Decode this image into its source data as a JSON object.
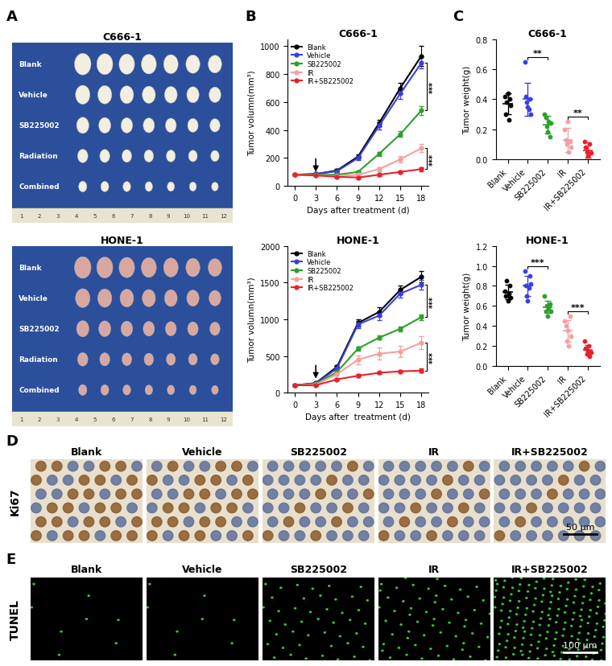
{
  "panels": {
    "A": {
      "label": "A",
      "photos": [
        {
          "title": "C666-1",
          "rows": [
            "Blank",
            "Vehicle",
            "SB225002",
            "Radiation",
            "Combined"
          ]
        },
        {
          "title": "HONE-1",
          "rows": [
            "Blank",
            "Vehicle",
            "SB225002",
            "Radiation",
            "Combined"
          ]
        }
      ],
      "ruler": [
        1,
        2,
        3,
        4,
        5,
        6,
        7,
        8,
        9,
        10,
        11,
        12
      ]
    },
    "D": {
      "label": "D",
      "stain": "Ki67",
      "columns": [
        "Blank",
        "Vehicle",
        "SB225002",
        "IR",
        "IR+SB225002"
      ],
      "scale_bar": "50 μm"
    },
    "E": {
      "label": "E",
      "stain": "TUNEL",
      "columns": [
        "Blank",
        "Vehicle",
        "SB225002",
        "IR",
        "IR+SB225002"
      ],
      "scale_bar": "100 μm"
    }
  },
  "chart_data": [
    {
      "type": "line",
      "panel_label": "B",
      "title": "C666-1",
      "x_label": "Days after treatment (d)",
      "y_label": "Tumor volumn(mm³)",
      "x": [
        0,
        3,
        6,
        9,
        12,
        15,
        18
      ],
      "xlim": [
        -1,
        19
      ],
      "xticks": [
        0,
        3,
        6,
        9,
        12,
        15,
        18
      ],
      "ylim": [
        0,
        1050
      ],
      "yticks": [
        0,
        200,
        400,
        600,
        800,
        1000
      ],
      "legend": "upper left",
      "marker": "o",
      "treatment_day": 3,
      "series": [
        {
          "name": "Blank",
          "color": "#000000",
          "values": [
            80,
            85,
            110,
            210,
            450,
            700,
            930
          ],
          "errors": [
            5,
            6,
            10,
            15,
            25,
            40,
            70
          ]
        },
        {
          "name": "Vehicle",
          "color": "#3a3fe0",
          "values": [
            80,
            85,
            105,
            200,
            430,
            660,
            880
          ],
          "errors": [
            5,
            6,
            10,
            15,
            25,
            35,
            40
          ]
        },
        {
          "name": "SB225002",
          "color": "#2ca02c",
          "values": [
            80,
            80,
            80,
            100,
            230,
            370,
            540
          ],
          "errors": [
            5,
            5,
            6,
            8,
            15,
            20,
            30
          ]
        },
        {
          "name": "IR",
          "color": "#f4a0a0",
          "values": [
            80,
            75,
            70,
            80,
            120,
            190,
            270
          ],
          "errors": [
            5,
            5,
            5,
            8,
            15,
            25,
            30
          ]
        },
        {
          "name": "IR+SB225002",
          "color": "#e8212b",
          "values": [
            80,
            75,
            65,
            60,
            80,
            100,
            120
          ],
          "errors": [
            5,
            5,
            5,
            5,
            8,
            10,
            15
          ]
        }
      ],
      "significance": [
        {
          "label": "***",
          "between": [
            "Vehicle",
            "SB225002"
          ]
        },
        {
          "label": "***",
          "between": [
            "IR",
            "IR+SB225002"
          ]
        }
      ]
    },
    {
      "type": "line",
      "title": "HONE-1",
      "x_label": "Days after  treatment (d)",
      "y_label": "Tumor volumn(mm³)",
      "x": [
        0,
        3,
        6,
        9,
        12,
        15,
        18
      ],
      "xlim": [
        -1,
        19
      ],
      "xticks": [
        0,
        3,
        6,
        9,
        12,
        15,
        18
      ],
      "ylim": [
        0,
        2000
      ],
      "yticks": [
        0,
        500,
        1000,
        1500,
        2000
      ],
      "legend": "upper left",
      "marker": "o",
      "treatment_day": 3,
      "series": [
        {
          "name": "Blank",
          "color": "#000000",
          "values": [
            100,
            130,
            350,
            950,
            1100,
            1400,
            1580
          ],
          "errors": [
            8,
            10,
            20,
            50,
            60,
            60,
            80
          ]
        },
        {
          "name": "Vehicle",
          "color": "#3a3fe0",
          "values": [
            100,
            125,
            330,
            930,
            1050,
            1350,
            1470
          ],
          "errors": [
            8,
            10,
            20,
            50,
            60,
            60,
            70
          ]
        },
        {
          "name": "SB225002",
          "color": "#2ca02c",
          "values": [
            100,
            120,
            280,
            600,
            750,
            870,
            1030
          ],
          "errors": [
            8,
            10,
            20,
            30,
            30,
            30,
            40
          ]
        },
        {
          "name": "IR",
          "color": "#f4a0a0",
          "values": [
            100,
            110,
            250,
            450,
            530,
            560,
            680
          ],
          "errors": [
            8,
            10,
            20,
            60,
            80,
            80,
            90
          ]
        },
        {
          "name": "IR+SB225002",
          "color": "#e8212b",
          "values": [
            100,
            100,
            180,
            230,
            270,
            290,
            300
          ],
          "errors": [
            8,
            8,
            15,
            20,
            20,
            20,
            25
          ]
        }
      ],
      "significance": [
        {
          "label": "***",
          "between": [
            "Vehicle",
            "SB225002"
          ]
        },
        {
          "label": "***",
          "between": [
            "IR",
            "IR+SB225002"
          ]
        }
      ]
    },
    {
      "type": "scatter",
      "panel_label": "C",
      "title": "C666-1",
      "y_label": "Tumor weight(g)",
      "categories": [
        "Blank",
        "Vehicle",
        "SB225002",
        "IR",
        "IR+SB225002"
      ],
      "colors": [
        "#000000",
        "#3a3fe0",
        "#2ca02c",
        "#f4a0a0",
        "#e8212b"
      ],
      "ylim": [
        0,
        0.8
      ],
      "yticks": [
        0.0,
        0.2,
        0.4,
        0.6,
        0.8
      ],
      "values": [
        [
          0.42,
          0.3,
          0.38,
          0.44,
          0.26,
          0.4,
          0.36
        ],
        [
          0.65,
          0.42,
          0.38,
          0.35,
          0.33,
          0.4,
          0.3
        ],
        [
          0.3,
          0.28,
          0.22,
          0.18,
          0.25,
          0.15,
          0.24
        ],
        [
          0.2,
          0.13,
          0.1,
          0.25,
          0.05,
          0.12,
          0.08
        ],
        [
          0.12,
          0.08,
          0.05,
          0.02,
          0.03,
          0.1,
          0.04
        ]
      ],
      "means": [
        0.37,
        0.4,
        0.23,
        0.13,
        0.06
      ],
      "sd": [
        0.07,
        0.11,
        0.06,
        0.08,
        0.05
      ],
      "significance": [
        {
          "label": "**",
          "between": [
            "Vehicle",
            "SB225002"
          ]
        },
        {
          "label": "**",
          "between": [
            "IR",
            "IR+SB225002"
          ]
        }
      ]
    },
    {
      "type": "scatter",
      "title": "HONE-1",
      "y_label": "Tumor weight(g)",
      "categories": [
        "Blank",
        "Vehicle",
        "SB225002",
        "IR",
        "IR+SB225002"
      ],
      "colors": [
        "#000000",
        "#3a3fe0",
        "#2ca02c",
        "#f4a0a0",
        "#e8212b"
      ],
      "ylim": [
        0,
        1.2
      ],
      "yticks": [
        0.0,
        0.2,
        0.4,
        0.6,
        0.8,
        1.0,
        1.2
      ],
      "values": [
        [
          0.75,
          0.7,
          0.85,
          0.65,
          0.72,
          0.8,
          0.68
        ],
        [
          0.95,
          0.8,
          0.7,
          0.65,
          0.78,
          0.9,
          0.82
        ],
        [
          0.7,
          0.55,
          0.6,
          0.5,
          0.58,
          0.62,
          0.55
        ],
        [
          0.45,
          0.4,
          0.25,
          0.35,
          0.2,
          0.5,
          0.3
        ],
        [
          0.25,
          0.18,
          0.12,
          0.15,
          0.2,
          0.1,
          0.14
        ]
      ],
      "means": [
        0.74,
        0.8,
        0.59,
        0.35,
        0.16
      ],
      "sd": [
        0.07,
        0.1,
        0.06,
        0.11,
        0.05
      ],
      "significance": [
        {
          "label": "***",
          "between": [
            "Vehicle",
            "SB225002"
          ]
        },
        {
          "label": "***",
          "between": [
            "IR",
            "IR+SB225002"
          ]
        }
      ]
    }
  ]
}
